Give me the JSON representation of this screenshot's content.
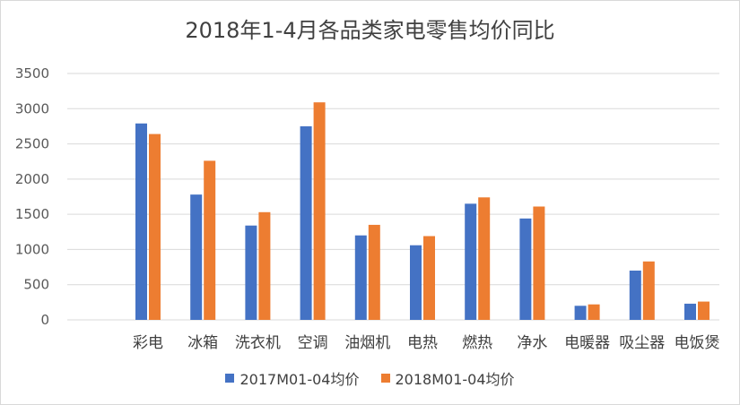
{
  "chart_data": {
    "type": "bar",
    "title": "2018年1-4月各品类家电零售均价同比",
    "categories": [
      "彩电",
      "冰箱",
      "洗衣机",
      "空调",
      "油烟机",
      "电热",
      "燃热",
      "净水",
      "电暖器",
      "吸尘器",
      "电饭煲"
    ],
    "series": [
      {
        "name": "2017M01-04均价",
        "color": "#4472c4",
        "values": [
          2790,
          1780,
          1340,
          2750,
          1200,
          1060,
          1650,
          1440,
          200,
          700,
          230
        ]
      },
      {
        "name": "2018M01-04均价",
        "color": "#ed7d31",
        "values": [
          2640,
          2260,
          1530,
          3090,
          1350,
          1190,
          1740,
          1610,
          220,
          830,
          260
        ]
      }
    ],
    "yticks": [
      "0",
      "500",
      "1000",
      "1500",
      "2000",
      "2500",
      "3000",
      "3500"
    ],
    "ylim": [
      0,
      3500
    ],
    "grid": true,
    "legend": "bottom",
    "gridline_color": "#d9d9d9"
  }
}
